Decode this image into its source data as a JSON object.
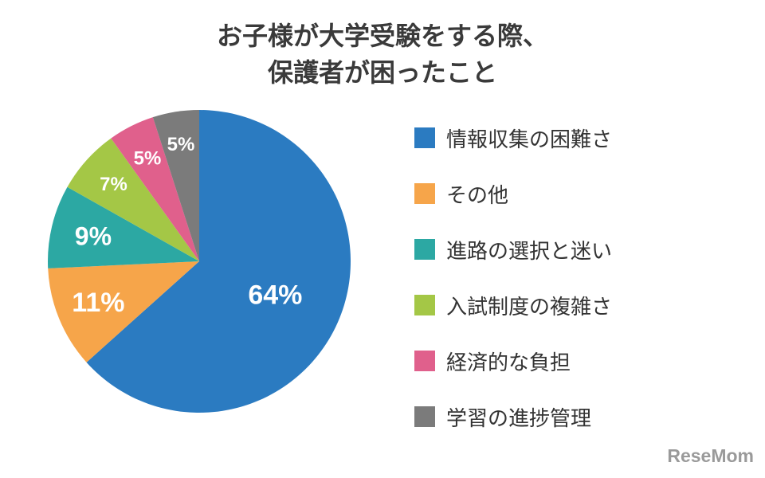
{
  "title_lines": [
    "お子様が大学受験をする際、",
    "保護者が困ったこと"
  ],
  "logo": "ReseMom",
  "chart_data": {
    "type": "pie",
    "title": "お子様が大学受験をする際、保護者が困ったこと",
    "slices": [
      {
        "label": "情報収集の困難さ",
        "value": 64,
        "value_label": "64%",
        "color": "#2b7bc1"
      },
      {
        "label": "その他",
        "value": 11,
        "value_label": "11%",
        "color": "#f6a54a"
      },
      {
        "label": "進路の選択と迷い",
        "value": 9,
        "value_label": "9%",
        "color": "#2ca8a3"
      },
      {
        "label": "入試制度の複雑さ",
        "value": 7,
        "value_label": "7%",
        "color": "#a4c746"
      },
      {
        "label": "経済的な負担",
        "value": 5,
        "value_label": "5%",
        "color": "#e0608c"
      },
      {
        "label": "学習の進捗管理",
        "value": 5,
        "value_label": "5%",
        "color": "#7b7b7b"
      }
    ],
    "start": "12 o'clock",
    "direction": "clockwise",
    "legend_position": "right"
  }
}
